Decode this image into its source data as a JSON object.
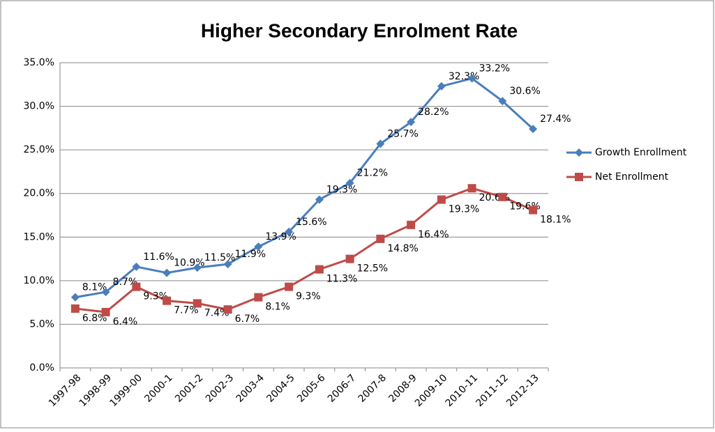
{
  "chart_data": {
    "type": "line",
    "title": "Higher Secondary Enrolment Rate",
    "categories": [
      "1997-98",
      "1998-99",
      "1999-00",
      "2000-1",
      "2001-2",
      "2002-3",
      "2003-4",
      "2004-5",
      "2005-6",
      "2006-7",
      "2007-8",
      "2008-9",
      "2009-10",
      "2010-11",
      "2011-12",
      "2012-13"
    ],
    "series": [
      {
        "name": "Growth Enrollment",
        "color": "#4a7ebb",
        "marker": "diamond",
        "values": [
          8.1,
          8.7,
          11.6,
          10.9,
          11.5,
          11.9,
          13.9,
          15.6,
          19.3,
          21.2,
          25.7,
          28.2,
          32.3,
          33.2,
          30.6,
          27.4
        ],
        "value_labels": [
          "8.1%",
          "8.7%",
          "11.6%",
          "10.9%",
          "11.5%",
          "11.9%",
          "13.9%",
          "15.6%",
          "19.3%",
          "21.2%",
          "25.7%",
          "28.2%",
          "32.3%",
          "33.2%",
          "30.6%",
          "27.4%"
        ]
      },
      {
        "name": "Net Enrollment",
        "color": "#be4b48",
        "marker": "square",
        "values": [
          6.8,
          6.4,
          9.3,
          7.7,
          7.4,
          6.7,
          8.1,
          9.3,
          11.3,
          12.5,
          14.8,
          16.4,
          19.3,
          20.6,
          19.6,
          18.1
        ],
        "value_labels": [
          "6.8%",
          "6.4%",
          "9.3%",
          "7.7%",
          "7.4%",
          "6.7%",
          "8.1%",
          "9.3%",
          "11.3%",
          "12.5%",
          "14.8%",
          "16.4%",
          "19.3%",
          "20.6%",
          "19.6%",
          "18.1%"
        ]
      }
    ],
    "ylim": [
      0,
      35
    ],
    "yticks": [
      {
        "value": 0,
        "label": "0.0%"
      },
      {
        "value": 5,
        "label": "5.0%"
      },
      {
        "value": 10,
        "label": "10.0%"
      },
      {
        "value": 15,
        "label": "15.0%"
      },
      {
        "value": 20,
        "label": "20.0%"
      },
      {
        "value": 25,
        "label": "25.0%"
      },
      {
        "value": 30,
        "label": "30.0%"
      },
      {
        "value": 35,
        "label": "35.0%"
      }
    ],
    "grid": true,
    "legend": "right"
  }
}
